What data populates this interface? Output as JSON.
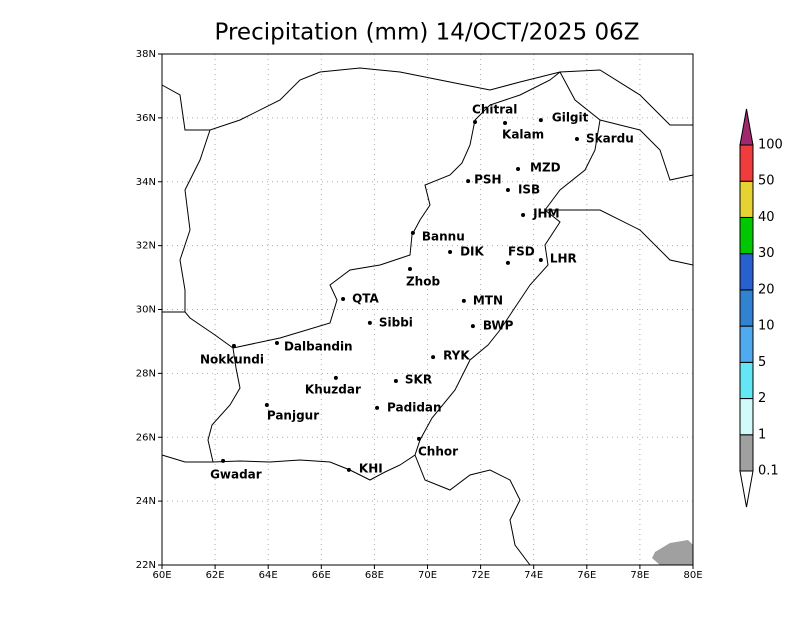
{
  "title": "Precipitation (mm) 14/OCT/2025 06Z",
  "map": {
    "xlim": [
      60,
      80
    ],
    "ylim": [
      22,
      38
    ],
    "xticks": [
      {
        "value": 60,
        "label": "60E"
      },
      {
        "value": 62,
        "label": "62E"
      },
      {
        "value": 64,
        "label": "64E"
      },
      {
        "value": 66,
        "label": "66E"
      },
      {
        "value": 68,
        "label": "68E"
      },
      {
        "value": 70,
        "label": "70E"
      },
      {
        "value": 72,
        "label": "72E"
      },
      {
        "value": 74,
        "label": "74E"
      },
      {
        "value": 76,
        "label": "76E"
      },
      {
        "value": 78,
        "label": "78E"
      },
      {
        "value": 80,
        "label": "80E"
      }
    ],
    "yticks": [
      {
        "value": 22,
        "label": "22N"
      },
      {
        "value": 24,
        "label": "24N"
      },
      {
        "value": 26,
        "label": "26N"
      },
      {
        "value": 28,
        "label": "28N"
      },
      {
        "value": 30,
        "label": "30N"
      },
      {
        "value": 32,
        "label": "32N"
      },
      {
        "value": 34,
        "label": "34N"
      },
      {
        "value": 36,
        "label": "36N"
      },
      {
        "value": 38,
        "label": "38N"
      }
    ],
    "grid": true
  },
  "cities": [
    {
      "label": "Chitral",
      "lon": 71.79,
      "lat": 35.87
    },
    {
      "label": "Kalam",
      "lon": 72.92,
      "lat": 35.84
    },
    {
      "label": "Gilgit",
      "lon": 74.27,
      "lat": 35.93
    },
    {
      "label": "Skardu",
      "lon": 75.63,
      "lat": 35.34
    },
    {
      "label": "MZD",
      "lon": 73.41,
      "lat": 34.4
    },
    {
      "label": "PSH",
      "lon": 71.53,
      "lat": 34.02
    },
    {
      "label": "ISB",
      "lon": 73.03,
      "lat": 33.74
    },
    {
      "label": "JHM",
      "lon": 73.6,
      "lat": 32.96
    },
    {
      "label": "Bannu",
      "lon": 69.45,
      "lat": 32.4
    },
    {
      "label": "DIK",
      "lon": 70.85,
      "lat": 31.8
    },
    {
      "label": "FSD",
      "lon": 73.03,
      "lat": 31.46
    },
    {
      "label": "LHR",
      "lon": 74.27,
      "lat": 31.55
    },
    {
      "label": "Zhob",
      "lon": 69.34,
      "lat": 31.27
    },
    {
      "label": "QTA",
      "lon": 66.82,
      "lat": 30.33
    },
    {
      "label": "MTN",
      "lon": 71.37,
      "lat": 30.27
    },
    {
      "label": "Sibbi",
      "lon": 67.83,
      "lat": 29.58
    },
    {
      "label": "BWP",
      "lon": 71.71,
      "lat": 29.48
    },
    {
      "label": "Dalbandin",
      "lon": 64.33,
      "lat": 28.95
    },
    {
      "label": "Nokkundi",
      "lon": 62.71,
      "lat": 28.86
    },
    {
      "label": "RYK",
      "lon": 70.21,
      "lat": 28.51
    },
    {
      "label": "Khuzdar",
      "lon": 66.55,
      "lat": 27.86
    },
    {
      "label": "SKR",
      "lon": 68.81,
      "lat": 27.76
    },
    {
      "label": "Panjgur",
      "lon": 63.95,
      "lat": 27.01
    },
    {
      "label": "Padidan",
      "lon": 68.1,
      "lat": 26.92
    },
    {
      "label": "Chhor",
      "lon": 69.68,
      "lat": 25.95
    },
    {
      "label": "Gwadar",
      "lon": 62.3,
      "lat": 25.26
    },
    {
      "label": "KHI",
      "lon": 67.04,
      "lat": 24.98
    }
  ],
  "colorbar": {
    "levels": [
      0.1,
      1,
      2,
      5,
      10,
      20,
      30,
      40,
      50,
      100
    ],
    "colors": [
      "#a0a0a0",
      "#d2fafa",
      "#64e6f5",
      "#50aaf0",
      "#3282d2",
      "#2860d0",
      "#00c800",
      "#e6d232",
      "#f03c3c"
    ],
    "over_color": "#a0286e",
    "under_color": "#ffffff"
  }
}
